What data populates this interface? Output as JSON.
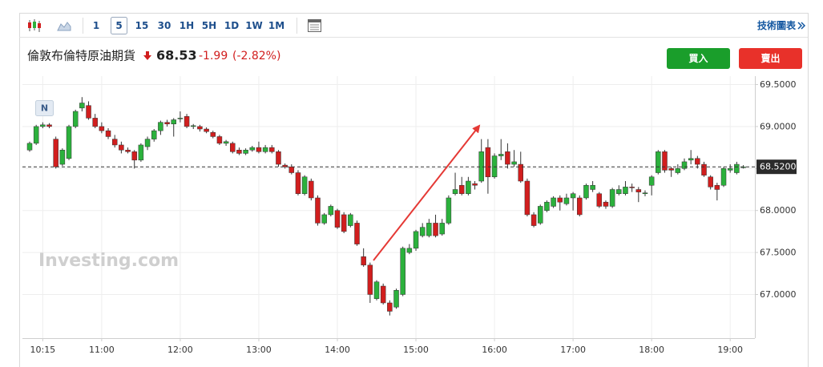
{
  "toolbar": {
    "intervals": [
      "1",
      "5",
      "15",
      "30",
      "1H",
      "5H",
      "1D",
      "1W",
      "1M"
    ],
    "link": "技術圖表"
  },
  "instrument": {
    "name": "倫敦布倫特原油期貨",
    "price": "68.53",
    "change": "-1.99",
    "change_percent": "(-2.82%)"
  },
  "buttons": {
    "buy": "買入",
    "sell": "賣出"
  },
  "chart_data": {
    "type": "candlestick",
    "marker": "N",
    "watermark": "Investing.com",
    "up_color": "#2bb13c",
    "down_color": "#d11e1e",
    "grid": true,
    "ylim": [
      66.48,
      69.6
    ],
    "yticks": [
      {
        "value": 67,
        "label": "67.0000"
      },
      {
        "value": 67.5,
        "label": "67.5000"
      },
      {
        "value": 68,
        "label": "68.0000"
      },
      {
        "value": 68.5,
        "label": "68.5000"
      },
      {
        "value": 69,
        "label": "69.0000"
      },
      {
        "value": 69.5,
        "label": "69.5000"
      }
    ],
    "last_price": {
      "value": 68.52,
      "label": "68.5200"
    },
    "xticks": [
      "10:15",
      "11:00",
      "12:00",
      "13:00",
      "14:00",
      "15:00",
      "16:00",
      "17:00",
      "18:00",
      "19:00"
    ],
    "x": [
      "10:05",
      "10:10",
      "10:15",
      "10:20",
      "10:25",
      "10:30",
      "10:35",
      "10:40",
      "10:45",
      "10:50",
      "10:55",
      "11:00",
      "11:05",
      "11:10",
      "11:15",
      "11:20",
      "11:25",
      "11:30",
      "11:35",
      "11:40",
      "11:45",
      "11:50",
      "11:55",
      "12:00",
      "12:05",
      "12:10",
      "12:15",
      "12:20",
      "12:25",
      "12:30",
      "12:35",
      "12:40",
      "12:45",
      "12:50",
      "12:55",
      "13:00",
      "13:05",
      "13:10",
      "13:15",
      "13:20",
      "13:25",
      "13:30",
      "13:35",
      "13:40",
      "13:45",
      "13:50",
      "13:55",
      "14:00",
      "14:05",
      "14:10",
      "14:15",
      "14:20",
      "14:25",
      "14:30",
      "14:35",
      "14:40",
      "14:45",
      "14:50",
      "14:55",
      "15:00",
      "15:05",
      "15:10",
      "15:15",
      "15:20",
      "15:25",
      "15:30",
      "15:35",
      "15:40",
      "15:45",
      "15:50",
      "15:55",
      "16:00",
      "16:05",
      "16:10",
      "16:15",
      "16:20",
      "16:25",
      "16:30",
      "16:35",
      "16:40",
      "16:45",
      "16:50",
      "16:55",
      "17:00",
      "17:05",
      "17:10",
      "17:15",
      "17:20",
      "17:25",
      "17:30",
      "17:35",
      "17:40",
      "17:45",
      "17:50",
      "17:55",
      "18:00",
      "18:05",
      "18:10",
      "18:15",
      "18:20",
      "18:25",
      "18:30",
      "18:35",
      "18:40",
      "18:45",
      "18:50",
      "18:55",
      "19:00",
      "19:05",
      "19:10"
    ],
    "open": [
      68.72,
      68.8,
      69.0,
      69.02,
      68.85,
      68.55,
      68.62,
      69.0,
      69.22,
      69.25,
      69.1,
      69.0,
      68.95,
      68.85,
      68.78,
      68.72,
      68.7,
      68.6,
      68.76,
      68.85,
      68.95,
      69.05,
      69.03,
      69.1,
      69.12,
      69.0,
      69.0,
      68.97,
      68.93,
      68.88,
      68.8,
      68.8,
      68.72,
      68.68,
      68.72,
      68.75,
      68.7,
      68.75,
      68.7,
      68.54,
      68.52,
      68.45,
      68.2,
      68.35,
      68.15,
      67.85,
      67.95,
      68.0,
      67.95,
      67.82,
      67.85,
      67.45,
      67.35,
      66.95,
      67.1,
      66.9,
      66.85,
      67.0,
      67.5,
      67.55,
      67.7,
      67.7,
      67.85,
      67.72,
      67.85,
      68.2,
      68.3,
      68.2,
      68.32,
      68.35,
      68.75,
      68.4,
      68.65,
      68.7,
      68.55,
      68.55,
      68.35,
      67.95,
      67.85,
      68.0,
      68.05,
      68.15,
      68.08,
      68.15,
      68.15,
      68.15,
      68.25,
      68.2,
      68.1,
      68.05,
      68.2,
      68.2,
      68.28,
      68.25,
      68.2,
      68.3,
      68.45,
      68.7,
      68.5,
      68.45,
      68.5,
      68.6,
      68.62,
      68.55,
      68.4,
      68.3,
      68.3,
      68.48,
      68.45,
      68.52
    ],
    "high": [
      68.82,
      69.02,
      69.05,
      69.04,
      68.88,
      68.74,
      69.02,
      69.2,
      69.35,
      69.3,
      69.15,
      69.05,
      68.98,
      68.9,
      68.82,
      68.75,
      68.72,
      68.8,
      68.88,
      68.97,
      69.07,
      69.08,
      69.1,
      69.18,
      69.15,
      69.03,
      69.02,
      68.99,
      68.95,
      68.9,
      68.84,
      68.82,
      68.75,
      68.74,
      68.77,
      68.82,
      68.78,
      68.78,
      68.72,
      68.56,
      68.55,
      68.48,
      68.42,
      68.38,
      68.18,
      67.97,
      68.07,
      68.02,
      67.98,
      67.97,
      67.88,
      67.55,
      67.38,
      67.17,
      67.13,
      66.93,
      67.07,
      67.57,
      67.6,
      67.77,
      67.85,
      67.9,
      67.95,
      67.9,
      68.18,
      68.45,
      68.4,
      68.4,
      68.35,
      68.85,
      68.85,
      68.68,
      68.85,
      68.8,
      68.72,
      68.7,
      68.38,
      67.98,
      68.07,
      68.12,
      68.17,
      68.18,
      68.2,
      68.22,
      68.18,
      68.32,
      68.35,
      68.22,
      68.12,
      68.27,
      68.3,
      68.35,
      68.32,
      68.28,
      68.24,
      68.42,
      68.72,
      68.72,
      68.52,
      68.55,
      68.62,
      68.72,
      68.65,
      68.58,
      68.42,
      68.33,
      68.52,
      68.55,
      68.58,
      68.54
    ],
    "low": [
      68.7,
      68.78,
      68.98,
      68.98,
      68.5,
      68.53,
      68.6,
      68.98,
      69.18,
      69.08,
      68.98,
      68.92,
      68.85,
      68.75,
      68.68,
      68.68,
      68.5,
      68.58,
      68.72,
      68.82,
      68.9,
      69.0,
      68.88,
      69.05,
      68.98,
      68.97,
      68.94,
      68.92,
      68.86,
      68.78,
      68.77,
      68.68,
      68.66,
      68.66,
      68.7,
      68.68,
      68.68,
      68.68,
      68.52,
      68.5,
      68.43,
      68.18,
      68.18,
      68.12,
      67.82,
      67.83,
      67.93,
      67.78,
      67.73,
      67.8,
      67.58,
      67.33,
      66.9,
      66.93,
      66.88,
      66.75,
      66.83,
      66.98,
      67.48,
      67.52,
      67.68,
      67.68,
      67.68,
      67.7,
      67.83,
      68.18,
      68.18,
      68.18,
      68.25,
      68.33,
      68.2,
      68.38,
      68.6,
      68.5,
      68.52,
      68.33,
      67.93,
      67.8,
      67.83,
      67.98,
      68.03,
      68.0,
      68.06,
      68.0,
      67.93,
      68.13,
      68.22,
      68.03,
      68.02,
      68.03,
      68.18,
      68.18,
      68.22,
      68.1,
      68.17,
      68.18,
      68.43,
      68.45,
      68.4,
      68.43,
      68.48,
      68.55,
      68.5,
      68.4,
      68.25,
      68.12,
      68.28,
      68.45,
      68.43,
      68.5
    ],
    "close": [
      68.8,
      69.0,
      69.02,
      69.0,
      68.52,
      68.72,
      69.0,
      69.18,
      69.28,
      69.1,
      69.0,
      68.95,
      68.88,
      68.78,
      68.72,
      68.7,
      68.6,
      68.78,
      68.85,
      68.95,
      69.05,
      69.03,
      69.08,
      69.1,
      69.0,
      69.01,
      68.97,
      68.94,
      68.88,
      68.8,
      68.82,
      68.7,
      68.68,
      68.72,
      68.75,
      68.7,
      68.75,
      68.7,
      68.55,
      68.52,
      68.45,
      68.2,
      68.4,
      68.15,
      67.85,
      67.95,
      68.05,
      67.8,
      67.75,
      67.95,
      67.6,
      67.35,
      67.0,
      67.15,
      66.9,
      66.8,
      67.05,
      67.55,
      67.55,
      67.75,
      67.8,
      67.85,
      67.7,
      67.85,
      68.15,
      68.25,
      68.2,
      68.35,
      68.3,
      68.7,
      68.4,
      68.65,
      68.67,
      68.55,
      68.58,
      68.35,
      67.95,
      67.82,
      68.05,
      68.1,
      68.15,
      68.1,
      68.15,
      68.2,
      67.95,
      68.3,
      68.3,
      68.05,
      68.05,
      68.25,
      68.25,
      68.28,
      68.27,
      68.22,
      68.21,
      68.4,
      68.7,
      68.48,
      68.48,
      68.5,
      68.58,
      68.62,
      68.55,
      68.42,
      68.28,
      68.25,
      68.5,
      68.5,
      68.55,
      68.52
    ]
  }
}
